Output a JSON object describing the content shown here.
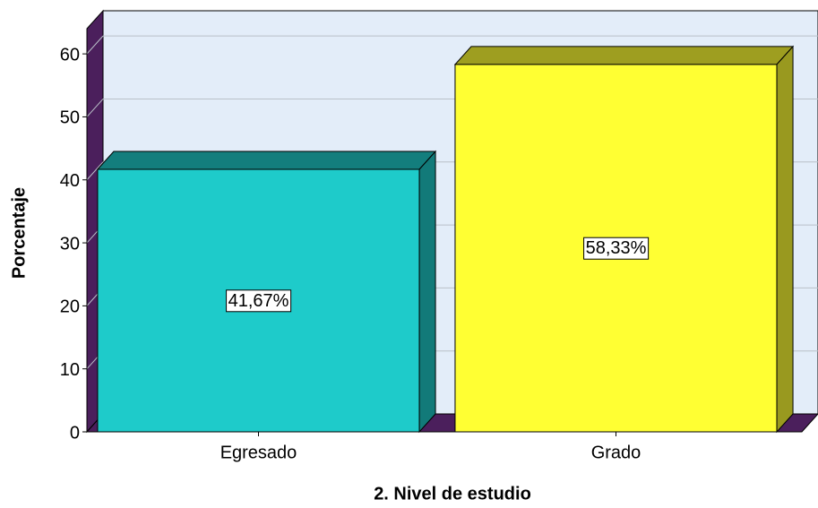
{
  "chart_data": {
    "type": "bar3d",
    "x_label": "2. Nivel de estudio",
    "y_label": "Porcentaje",
    "categories": [
      "Egresado",
      "Grado"
    ],
    "values": [
      41.67,
      58.33
    ],
    "value_labels": [
      "41,67%",
      "58,33%"
    ],
    "colors": [
      "#1ecbca",
      "#ffff33"
    ],
    "ylim": [
      0,
      64
    ],
    "yticks": [
      0,
      10,
      20,
      30,
      40,
      50,
      60
    ],
    "grid": true
  }
}
